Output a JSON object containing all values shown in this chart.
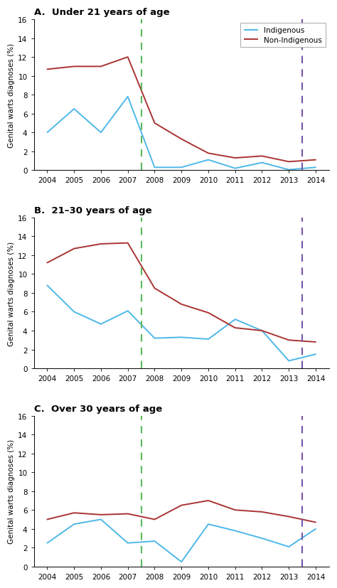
{
  "panels": [
    {
      "title": "A.  Under 21 years of age",
      "x_ind": [
        2004,
        2005,
        2006,
        2007,
        2008,
        2009,
        2010,
        2011,
        2012,
        2013,
        2014
      ],
      "y_ind": [
        4.0,
        6.5,
        4.0,
        7.8,
        0.3,
        0.3,
        1.1,
        0.2,
        0.8,
        0.05,
        0.3
      ],
      "x_non": [
        2004,
        2005,
        2006,
        2007,
        2008,
        2009,
        2010,
        2011,
        2012,
        2013,
        2014
      ],
      "y_non": [
        10.7,
        11.0,
        11.0,
        12.0,
        5.0,
        3.3,
        1.8,
        1.3,
        1.5,
        0.9,
        1.1
      ],
      "show_legend": true
    },
    {
      "title": "B.  21–30 years of age",
      "x_ind": [
        2004,
        2005,
        2006,
        2007,
        2008,
        2009,
        2010,
        2011,
        2012,
        2013,
        2014
      ],
      "y_ind": [
        8.8,
        6.0,
        4.7,
        6.1,
        3.2,
        3.3,
        3.1,
        5.2,
        4.0,
        0.8,
        1.5
      ],
      "x_non": [
        2004,
        2005,
        2006,
        2007,
        2008,
        2009,
        2010,
        2011,
        2012,
        2013,
        2014
      ],
      "y_non": [
        11.2,
        12.7,
        13.2,
        13.3,
        8.5,
        6.8,
        5.9,
        4.3,
        4.0,
        3.0,
        2.8
      ],
      "show_legend": false
    },
    {
      "title": "C.  Over 30 years of age",
      "x_ind": [
        2004,
        2005,
        2006,
        2007,
        2008,
        2009,
        2010,
        2011,
        2012,
        2013,
        2014
      ],
      "y_ind": [
        2.5,
        4.5,
        5.0,
        2.5,
        2.7,
        0.5,
        4.5,
        3.8,
        3.0,
        2.1,
        4.0
      ],
      "x_non": [
        2004,
        2005,
        2006,
        2007,
        2008,
        2009,
        2010,
        2011,
        2012,
        2013,
        2014
      ],
      "y_non": [
        5.0,
        5.7,
        5.5,
        5.6,
        5.0,
        6.5,
        7.0,
        6.0,
        5.8,
        5.3,
        4.7
      ],
      "show_legend": false
    }
  ],
  "x_ticks": [
    2004,
    2005,
    2006,
    2007,
    2008,
    2009,
    2010,
    2011,
    2012,
    2013,
    2014
  ],
  "xlim": [
    2003.5,
    2014.5
  ],
  "ylim": [
    0,
    16
  ],
  "y_ticks": [
    0,
    2,
    4,
    6,
    8,
    10,
    12,
    14,
    16
  ],
  "ylabel": "Genital warts diagnoses (%)",
  "indigenous_color": "#4db8e8",
  "non_indigenous_color": "#aa3333",
  "green_vline": 2007.5,
  "purple_vline": 2013.5,
  "green_color": "#5cb85c",
  "purple_color": "#7755aa",
  "linewidth": 1.4,
  "legend_labels": [
    "Indigenous",
    "Non-Indigenous"
  ]
}
